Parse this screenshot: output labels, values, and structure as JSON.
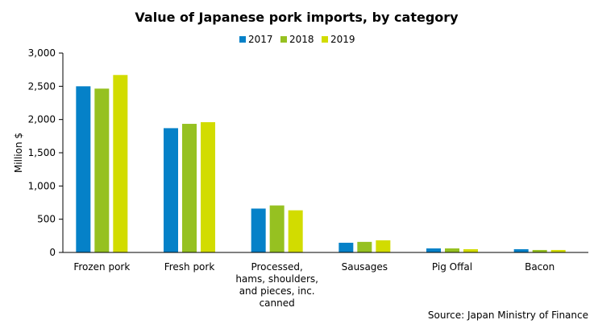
{
  "chart_data": {
    "type": "bar",
    "title": "Value of Japanese pork imports, by category",
    "ylabel": "Million $",
    "xlabel": "",
    "ylim": [
      0,
      3000
    ],
    "yticks": [
      "0",
      "500",
      "1,000",
      "1,500",
      "2,000",
      "2,500",
      "3,000"
    ],
    "categories": [
      [
        "Frozen pork"
      ],
      [
        "Fresh pork"
      ],
      [
        "Processed,",
        "hams, shoulders,",
        "and pieces, inc.",
        "canned"
      ],
      [
        "Sausages"
      ],
      [
        "Pig Offal"
      ],
      [
        "Bacon"
      ]
    ],
    "series": [
      {
        "name": "2017",
        "color": "#0581c8",
        "values": [
          2500,
          1870,
          660,
          146,
          61,
          49
        ]
      },
      {
        "name": "2018",
        "color": "#96c121",
        "values": [
          2465,
          1935,
          707,
          159,
          61,
          37
        ]
      },
      {
        "name": "2019",
        "color": "#d2dc00",
        "values": [
          2670,
          1960,
          634,
          183,
          49,
          37
        ]
      }
    ],
    "legend_position": "top",
    "grid": false,
    "source": "Source: Japan Ministry of Finance"
  }
}
